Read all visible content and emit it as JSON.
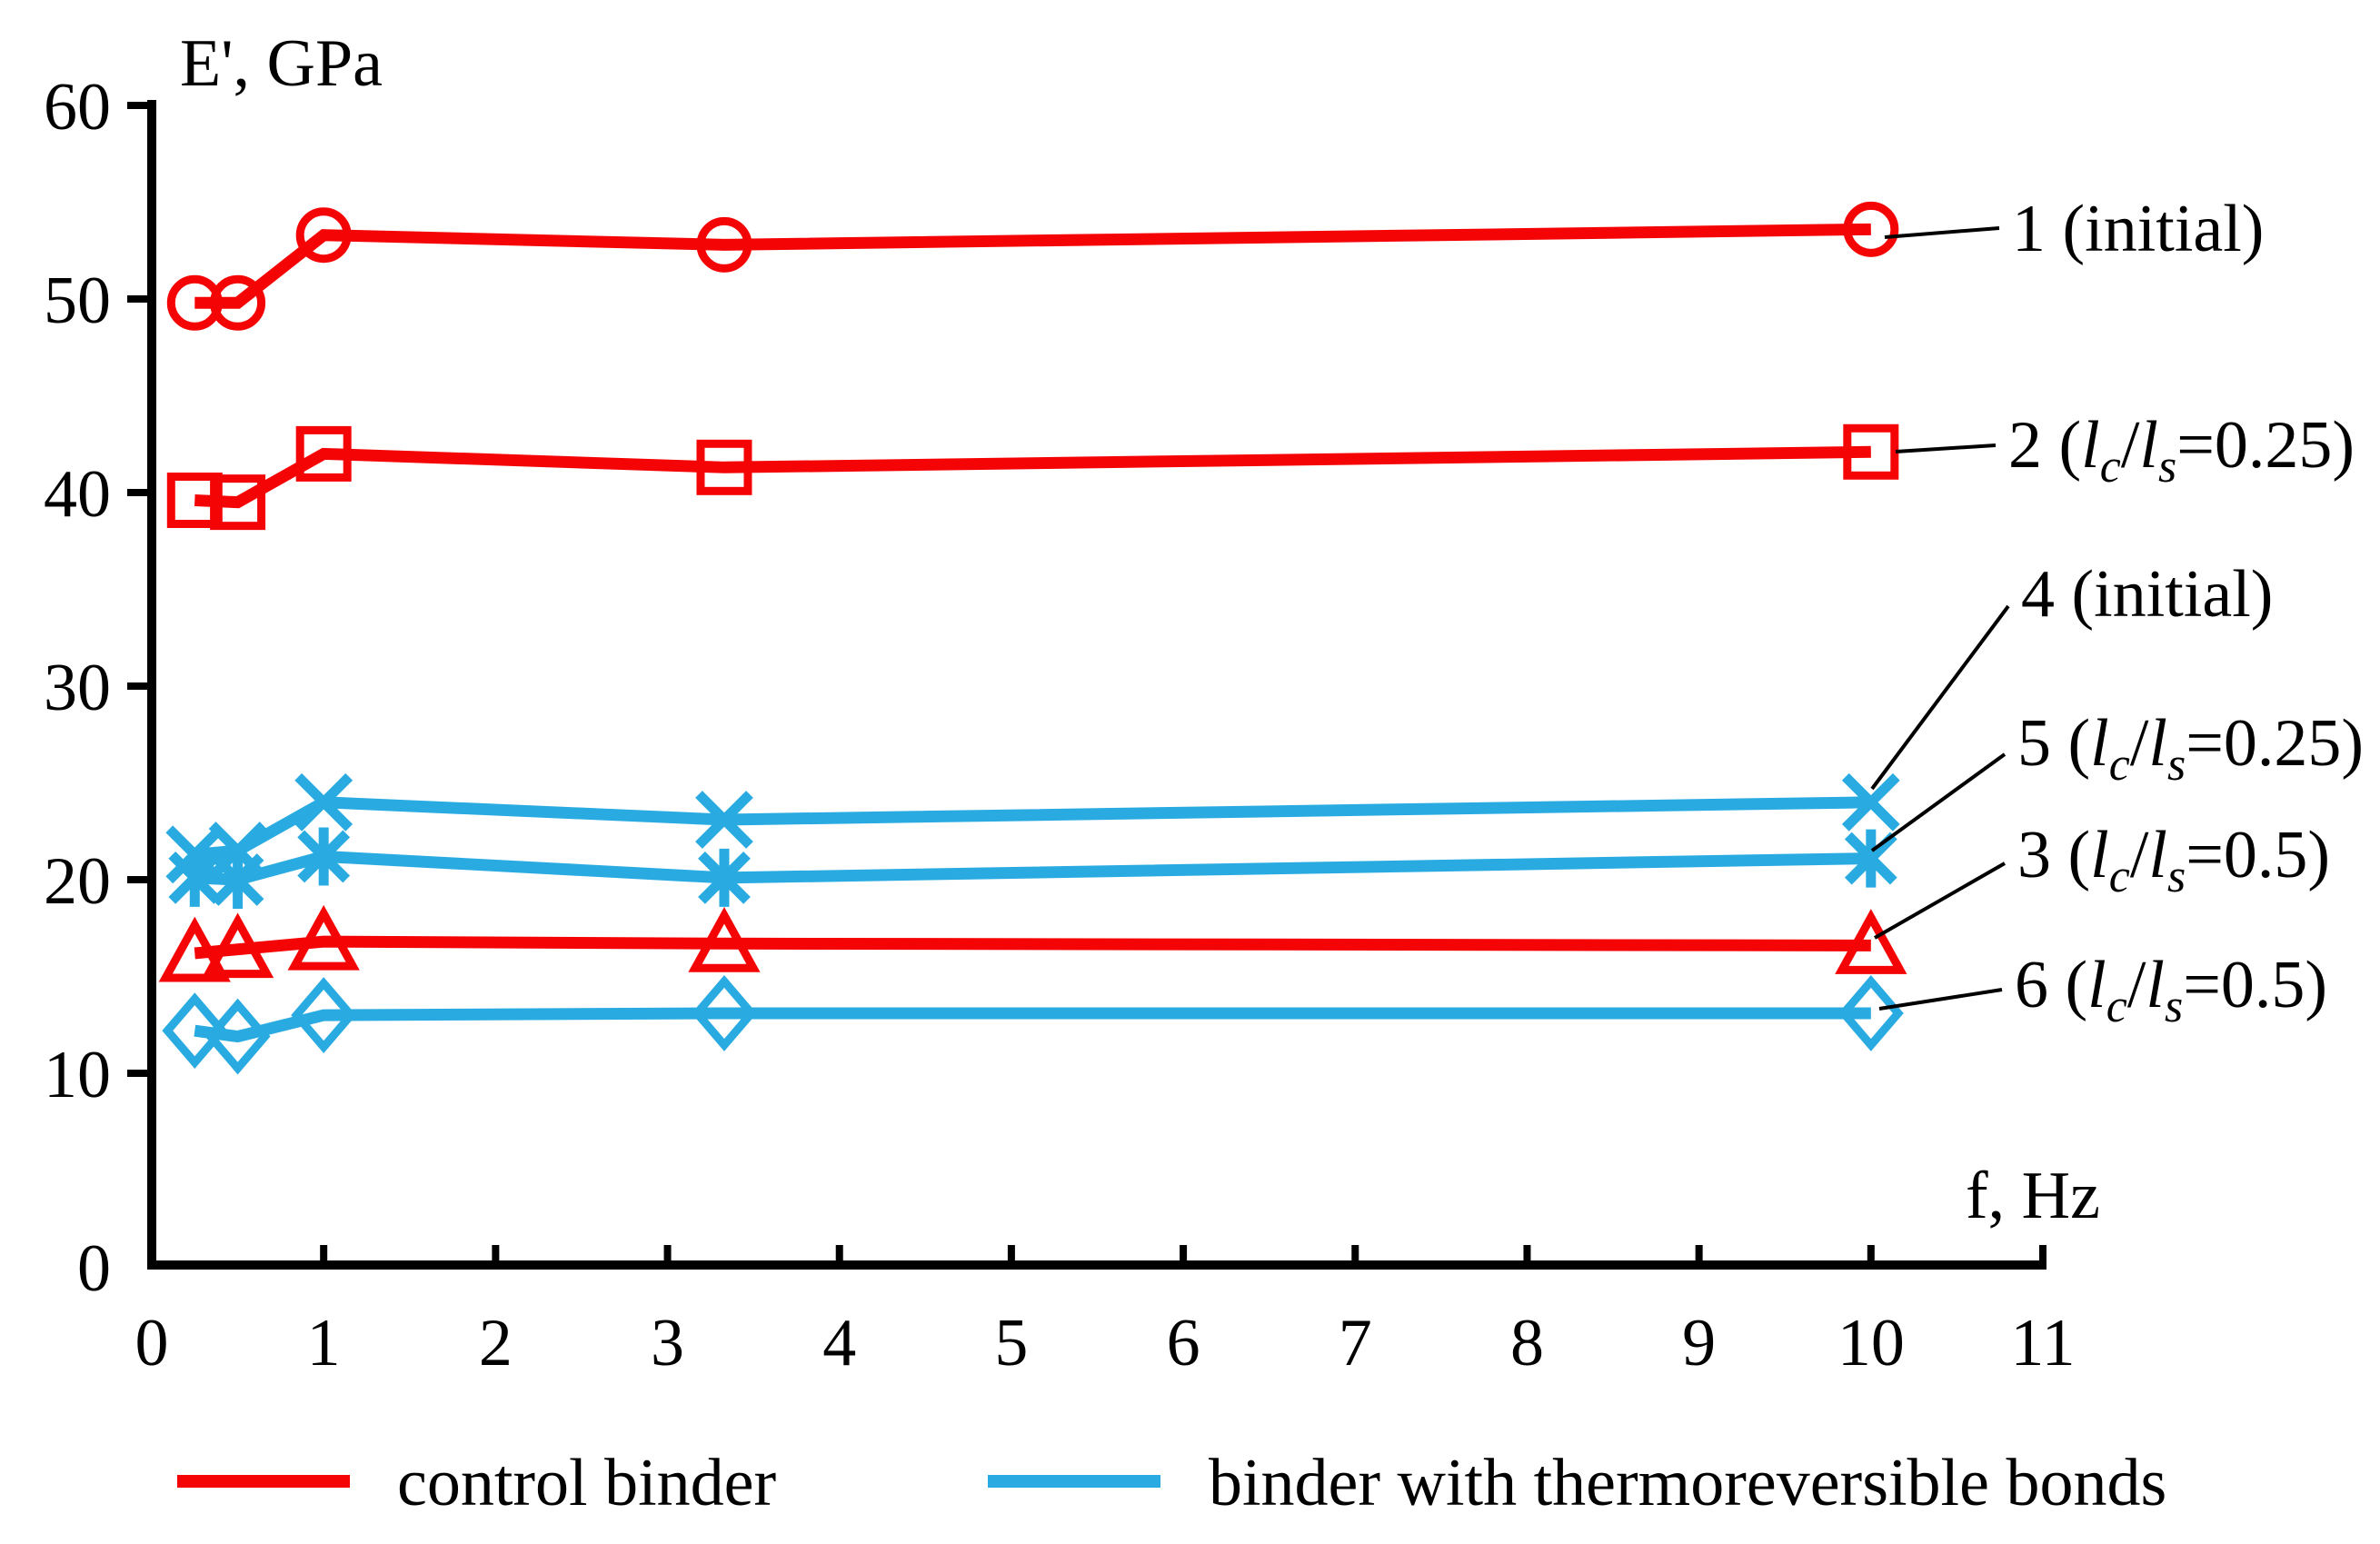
{
  "figure": {
    "background": "#ffffff",
    "axis_color": "#000000"
  },
  "chart_data": {
    "type": "line",
    "title": "",
    "xlabel": "f, Hz",
    "ylabel": "E', GPa",
    "xlim": [
      0,
      11
    ],
    "ylim": [
      0,
      60
    ],
    "xticks": [
      0,
      1,
      2,
      3,
      4,
      5,
      6,
      7,
      8,
      9,
      10,
      11
    ],
    "yticks": [
      0,
      10,
      20,
      30,
      40,
      50,
      60
    ],
    "grid": false,
    "legend_position": "bottom",
    "x": [
      0.25,
      0.5,
      1,
      3.33,
      10
    ],
    "series": [
      {
        "id": "1",
        "label": "1 (initial)",
        "marker": "circle",
        "color": "#f50406",
        "group": "control binder",
        "values": [
          49.8,
          49.8,
          53.3,
          52.8,
          53.6
        ]
      },
      {
        "id": "2",
        "label": "2 (l_c/l_s=0.25)",
        "marker": "square",
        "color": "#f50406",
        "group": "control binder",
        "values": [
          39.6,
          39.5,
          42.0,
          41.3,
          42.1
        ]
      },
      {
        "id": "3",
        "label": "3 (l_c/l_s=0.5)",
        "marker": "triangle",
        "color": "#f50406",
        "group": "control binder",
        "values": [
          16.2,
          16.4,
          16.8,
          16.7,
          16.6
        ]
      },
      {
        "id": "4",
        "label": "4 (initial)",
        "marker": "x",
        "color": "#29abe2",
        "group": "binder with thermoreversible bonds",
        "values": [
          21.3,
          21.5,
          24.0,
          23.1,
          24.0
        ]
      },
      {
        "id": "5",
        "label": "5 (l_c/l_s=0.25)",
        "marker": "asterisk",
        "color": "#29abe2",
        "group": "binder with thermoreversible bonds",
        "values": [
          20.1,
          20.0,
          21.2,
          20.1,
          21.1
        ]
      },
      {
        "id": "6",
        "label": "6 (l_c/l_s=0.5)",
        "marker": "diamond",
        "color": "#29abe2",
        "group": "binder with thermoreversible bonds",
        "values": [
          12.2,
          11.9,
          13.0,
          13.1,
          13.1
        ]
      }
    ],
    "legend": [
      {
        "label": "control binder",
        "color": "#f50406"
      },
      {
        "label": "binder with thermoreversible bonds",
        "color": "#29abe2"
      }
    ]
  }
}
